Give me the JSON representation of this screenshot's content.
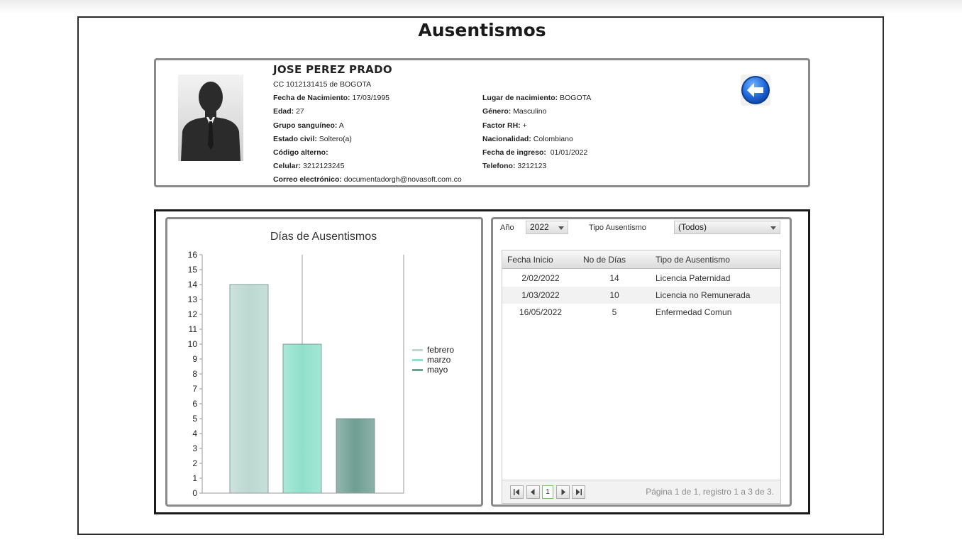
{
  "page": {
    "title": "Ausentismos"
  },
  "person": {
    "name": "JOSE PEREZ PRADO",
    "id_line": "CC 1012131415 de BOGOTA",
    "fields_left": [
      {
        "label": "Fecha de Nacimiento:",
        "value": "17/03/1995"
      },
      {
        "label": "Edad:",
        "value": "27"
      },
      {
        "label": "Grupo sanguíneo:",
        "value": "A"
      },
      {
        "label": "Estado civil:",
        "value": "Soltero(a)"
      },
      {
        "label": "Código alterno:",
        "value": ""
      },
      {
        "label": "Celular:",
        "value": "3212123245"
      },
      {
        "label": "Correo electrónico:",
        "value": "documentadorgh@novasoft.com.co"
      }
    ],
    "fields_right": [
      {
        "label": "Lugar de nacimiento:",
        "value": "BOGOTA"
      },
      {
        "label": "Género:",
        "value": "Masculino"
      },
      {
        "label": "Factor RH:",
        "value": "+"
      },
      {
        "label": "Nacionalidad:",
        "value": "Colombiano"
      },
      {
        "label": "Fecha de ingreso:",
        "value": "01/01/2022"
      },
      {
        "label": "Telefono:",
        "value": "3212123"
      }
    ],
    "photo_icon": "person-silhouette-icon",
    "back_icon": "back-arrow-icon"
  },
  "filters": {
    "year_label": "Año",
    "year_value": "2022",
    "type_label": "Tipo Ausentismo",
    "type_value": "(Todos)"
  },
  "table": {
    "columns": [
      "Fecha Inicio",
      "No de Días",
      "Tipo de Ausentismo"
    ],
    "rows": [
      [
        "2/02/2022",
        "14",
        "Licencia Paternidad"
      ],
      [
        "1/03/2022",
        "10",
        "Licencia no Remunerada"
      ],
      [
        "16/05/2022",
        "5",
        "Enfermedad Comun"
      ]
    ],
    "pager": {
      "current_page": "1",
      "info": "Página 1 de 1, registro 1 a 3 de 3."
    }
  },
  "chart_data": {
    "type": "bar",
    "title": "Días de Ausentismos",
    "categories": [
      "febrero",
      "marzo",
      "mayo"
    ],
    "values": [
      14,
      10,
      5
    ],
    "colors": [
      "#bcd8d1",
      "#8fe0cc",
      "#6f9e92"
    ],
    "ylim": [
      0,
      16
    ],
    "yticks": [
      "0",
      "1",
      "2",
      "3",
      "4",
      "5",
      "6",
      "7",
      "8",
      "9",
      "10",
      "11",
      "12",
      "13",
      "14",
      "15",
      "16"
    ],
    "xlabel": "",
    "ylabel": "",
    "legend": "right",
    "grid": false
  }
}
